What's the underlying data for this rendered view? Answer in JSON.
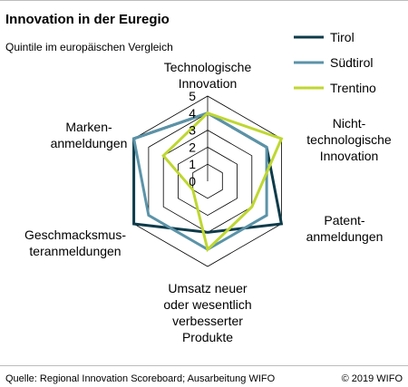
{
  "chart_data": {
    "type": "radar",
    "title": "Innovation in der Euregio",
    "subtitle": "Quintile im europäischen Vergleich",
    "axes": [
      [
        "Technologische",
        "Innovation"
      ],
      [
        "Nicht-",
        "technologische",
        "Innovation"
      ],
      [
        "Patent-",
        "anmeldungen"
      ],
      [
        "Umsatz neuer",
        "oder wesentlich",
        "verbesserter",
        "Produkte"
      ],
      [
        "Geschmacksmus-",
        "teranmeldungen"
      ],
      [
        "Marken-",
        "anmeldungen"
      ]
    ],
    "rmin": 0,
    "rmax": 5,
    "ticks": [
      "0",
      "1",
      "2",
      "3",
      "4",
      "5"
    ],
    "series": [
      {
        "name": "Tirol",
        "color": "#0d3b4a",
        "values": [
          4,
          4,
          5,
          3,
          5,
          5
        ]
      },
      {
        "name": "Südtirol",
        "color": "#5b93a8",
        "values": [
          4,
          4,
          4,
          4,
          4,
          5
        ]
      },
      {
        "name": "Trentino",
        "color": "#bfd730",
        "values": [
          4,
          5,
          3,
          4,
          1,
          3
        ]
      }
    ],
    "legend_position": "top-right"
  },
  "footer": {
    "source": "Quelle: Regional Innovation Scoreboard; Ausarbeitung WIFO",
    "copyright": "© 2019 WIFO"
  }
}
